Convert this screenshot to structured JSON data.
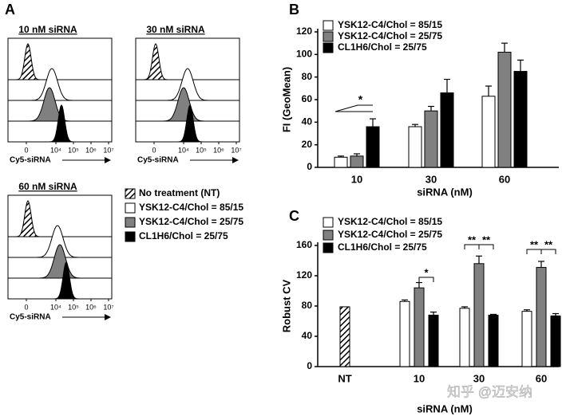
{
  "panel_a": {
    "label": "A",
    "panels": [
      {
        "title": "10 nM siRNA",
        "xlabel": "Cy5-siRNA",
        "xtick_labels": [
          "0",
          "10⁴",
          "10⁵",
          "10⁶",
          "10⁷"
        ]
      },
      {
        "title": "30 nM siRNA",
        "xlabel": "Cy5-siRNA",
        "xtick_labels": [
          "0",
          "10⁴",
          "10⁵",
          "10⁶",
          "10⁷"
        ]
      },
      {
        "title": "60 nM siRNA",
        "xlabel": "Cy5-siRNA",
        "xtick_labels": [
          "0",
          "10⁴",
          "10⁵",
          "10⁶",
          "10⁷"
        ]
      }
    ]
  },
  "chart_data": [
    {
      "type": "bar",
      "label": "B",
      "ylabel": "FI (GeoMean)",
      "xlabel": "siRNA (nM)",
      "categories": [
        "10",
        "30",
        "60"
      ],
      "series": [
        {
          "name": "YSK12-C4/Chol = 85/15",
          "color": "#ffffff",
          "values": [
            9,
            36,
            63
          ],
          "errors": [
            1,
            2,
            9
          ]
        },
        {
          "name": "YSK12-C4/Chol = 25/75",
          "color": "#808080",
          "values": [
            10,
            50,
            102
          ],
          "errors": [
            2,
            4,
            8
          ]
        },
        {
          "name": "CL1H6/Chol = 25/75",
          "color": "#000000",
          "values": [
            36,
            66,
            85
          ],
          "errors": [
            7,
            12,
            10
          ]
        }
      ],
      "ylim": [
        0,
        120
      ],
      "yticks": [
        0,
        20,
        40,
        60,
        80,
        100,
        120
      ],
      "annotations": [
        "*"
      ]
    },
    {
      "type": "bar",
      "label": "C",
      "ylabel": "Robust CV",
      "xlabel": "siRNA (nM)",
      "categories": [
        "NT",
        "10",
        "30",
        "60"
      ],
      "series": [
        {
          "name": "No treatment (NT)",
          "color": "hatch",
          "values": [
            79,
            null,
            null,
            null
          ],
          "errors": [
            null,
            null,
            null,
            null
          ]
        },
        {
          "name": "YSK12-C4/Chol = 85/15",
          "color": "#ffffff",
          "values": [
            null,
            86,
            77,
            73
          ],
          "errors": [
            null,
            2,
            2,
            2
          ]
        },
        {
          "name": "YSK12-C4/Chol = 25/75",
          "color": "#808080",
          "values": [
            null,
            104,
            136,
            131
          ],
          "errors": [
            null,
            7,
            10,
            8
          ]
        },
        {
          "name": "CL1H6/Chol = 25/75",
          "color": "#000000",
          "values": [
            null,
            68,
            68,
            67
          ],
          "errors": [
            null,
            4,
            1,
            3
          ]
        }
      ],
      "ylim": [
        0,
        160
      ],
      "yticks": [
        0,
        40,
        80,
        120,
        160
      ],
      "annotations": [
        "*",
        "**",
        "**",
        "**",
        "**"
      ]
    }
  ],
  "watermark": "知乎 @迈安纳"
}
